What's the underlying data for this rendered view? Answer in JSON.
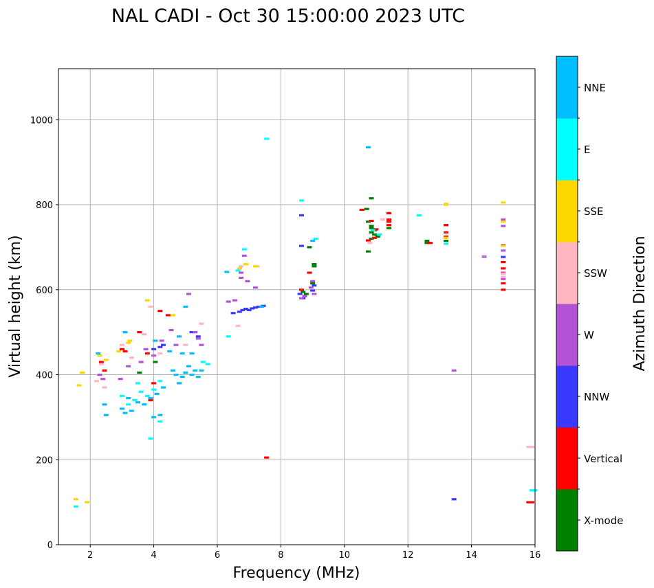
{
  "chart_data": {
    "type": "scatter",
    "title": "NAL CADI - Oct 30 15:00:00 2023 UTC",
    "xlabel": "Frequency (MHz)",
    "ylabel": "Virtual height (km)",
    "xlim": [
      1,
      16
    ],
    "ylim": [
      0,
      1120
    ],
    "xticks": [
      2,
      4,
      6,
      8,
      10,
      12,
      14,
      16
    ],
    "yticks": [
      0,
      200,
      400,
      600,
      800,
      1000
    ],
    "grid": true,
    "colorbar": {
      "label": "Azimuth Direction",
      "categories": [
        "X-mode",
        "Vertical",
        "NNW",
        "W",
        "SSW",
        "SSE",
        "E",
        "NNE"
      ],
      "colors": [
        "#008000",
        "#ff0000",
        "#3a3aff",
        "#b452d6",
        "#ffb6c1",
        "#ffd700",
        "#00ffff",
        "#00bfff"
      ]
    },
    "series": [
      {
        "name": "X-mode",
        "points": [
          [
            8.9,
            700
          ],
          [
            9.05,
            660
          ],
          [
            9.05,
            655
          ],
          [
            10.7,
            790
          ],
          [
            10.85,
            815
          ],
          [
            10.85,
            750
          ],
          [
            10.85,
            745
          ],
          [
            10.85,
            735
          ],
          [
            10.95,
            740
          ],
          [
            10.75,
            690
          ],
          [
            10.75,
            760
          ],
          [
            10.85,
            720
          ],
          [
            11.4,
            745
          ],
          [
            12.6,
            715
          ],
          [
            12.6,
            710
          ],
          [
            13.2,
            715
          ],
          [
            8.7,
            595
          ],
          [
            8.8,
            590
          ],
          [
            9.0,
            615
          ],
          [
            3.55,
            405
          ],
          [
            4.05,
            430
          ],
          [
            10.95,
            730
          ],
          [
            11.05,
            725
          ]
        ]
      },
      {
        "name": "Vertical",
        "points": [
          [
            7.55,
            205
          ],
          [
            10.55,
            788
          ],
          [
            10.85,
            762
          ],
          [
            10.95,
            722
          ],
          [
            10.75,
            716
          ],
          [
            11.0,
            742
          ],
          [
            11.4,
            780
          ],
          [
            11.4,
            765
          ],
          [
            11.4,
            760
          ],
          [
            11.4,
            752
          ],
          [
            12.7,
            710
          ],
          [
            13.2,
            752
          ],
          [
            13.2,
            735
          ],
          [
            13.2,
            725
          ],
          [
            15.0,
            665
          ],
          [
            15.0,
            650
          ],
          [
            15.0,
            615
          ],
          [
            15.0,
            600
          ],
          [
            15.8,
            100
          ],
          [
            15.9,
            100
          ],
          [
            8.65,
            600
          ],
          [
            8.9,
            640
          ],
          [
            3.0,
            460
          ],
          [
            3.1,
            455
          ],
          [
            2.35,
            430
          ],
          [
            3.55,
            500
          ],
          [
            4.2,
            550
          ],
          [
            2.45,
            410
          ],
          [
            3.9,
            340
          ],
          [
            4.0,
            380
          ],
          [
            3.8,
            450
          ],
          [
            4.45,
            540
          ]
        ]
      },
      {
        "name": "NNW",
        "points": [
          [
            6.5,
            545
          ],
          [
            6.7,
            548
          ],
          [
            6.8,
            552
          ],
          [
            6.9,
            555
          ],
          [
            7.0,
            552
          ],
          [
            7.1,
            556
          ],
          [
            7.2,
            558
          ],
          [
            7.3,
            560
          ],
          [
            7.45,
            562
          ],
          [
            8.65,
            775
          ],
          [
            8.65,
            703
          ],
          [
            8.7,
            580
          ],
          [
            9.0,
            598
          ],
          [
            9.05,
            610
          ],
          [
            13.45,
            107
          ],
          [
            15.0,
            677
          ],
          [
            4.3,
            470
          ],
          [
            4.2,
            465
          ],
          [
            5.2,
            500
          ],
          [
            5.4,
            490
          ],
          [
            8.6,
            590
          ],
          [
            4.0,
            460
          ]
        ]
      },
      {
        "name": "W",
        "points": [
          [
            6.35,
            572
          ],
          [
            6.55,
            575
          ],
          [
            6.75,
            640
          ],
          [
            6.75,
            628
          ],
          [
            6.85,
            680
          ],
          [
            6.95,
            620
          ],
          [
            7.2,
            605
          ],
          [
            8.65,
            580
          ],
          [
            8.75,
            585
          ],
          [
            8.95,
            605
          ],
          [
            9.05,
            590
          ],
          [
            9.0,
            620
          ],
          [
            13.45,
            410
          ],
          [
            14.4,
            678
          ],
          [
            15.0,
            765
          ],
          [
            15.0,
            750
          ],
          [
            15.0,
            705
          ],
          [
            15.0,
            692
          ],
          [
            15.0,
            640
          ],
          [
            15.0,
            625
          ],
          [
            2.3,
            400
          ],
          [
            2.4,
            390
          ],
          [
            2.95,
            390
          ],
          [
            3.2,
            420
          ],
          [
            3.6,
            430
          ],
          [
            3.75,
            460
          ],
          [
            4.0,
            445
          ],
          [
            4.25,
            480
          ],
          [
            4.55,
            505
          ],
          [
            4.7,
            470
          ],
          [
            5.1,
            590
          ],
          [
            5.3,
            500
          ],
          [
            5.4,
            485
          ],
          [
            5.5,
            470
          ]
        ]
      },
      {
        "name": "SSW",
        "points": [
          [
            6.65,
            515
          ],
          [
            6.75,
            655
          ],
          [
            7.25,
            655
          ],
          [
            10.8,
            710
          ],
          [
            11.2,
            765
          ],
          [
            15.0,
            637
          ],
          [
            15.0,
            630
          ],
          [
            15.8,
            230
          ],
          [
            15.9,
            230
          ],
          [
            2.2,
            385
          ],
          [
            2.45,
            370
          ],
          [
            2.35,
            425
          ],
          [
            3.0,
            470
          ],
          [
            3.3,
            440
          ],
          [
            3.7,
            495
          ],
          [
            3.9,
            560
          ],
          [
            4.2,
            450
          ],
          [
            5.0,
            470
          ],
          [
            5.5,
            520
          ]
        ]
      },
      {
        "name": "SSE",
        "points": [
          [
            6.7,
            650
          ],
          [
            6.9,
            660
          ],
          [
            7.2,
            655
          ],
          [
            13.2,
            802
          ],
          [
            13.2,
            800
          ],
          [
            13.2,
            722
          ],
          [
            15.0,
            805
          ],
          [
            15.0,
            760
          ],
          [
            15.0,
            703
          ],
          [
            1.65,
            375
          ],
          [
            1.75,
            405
          ],
          [
            1.9,
            100
          ],
          [
            1.55,
            107
          ],
          [
            2.3,
            445
          ],
          [
            2.5,
            435
          ],
          [
            2.9,
            455
          ],
          [
            3.2,
            475
          ],
          [
            3.25,
            480
          ],
          [
            3.8,
            575
          ],
          [
            4.6,
            540
          ]
        ]
      },
      {
        "name": "E",
        "points": [
          [
            6.35,
            490
          ],
          [
            6.65,
            645
          ],
          [
            6.85,
            695
          ],
          [
            7.55,
            955
          ],
          [
            8.65,
            810
          ],
          [
            9.1,
            720
          ],
          [
            10.9,
            740
          ],
          [
            11.1,
            730
          ],
          [
            12.35,
            775
          ],
          [
            13.2,
            708
          ],
          [
            15.9,
            128
          ],
          [
            16.0,
            128
          ],
          [
            1.55,
            90
          ],
          [
            3.0,
            350
          ],
          [
            3.2,
            330
          ],
          [
            3.4,
            340
          ],
          [
            3.6,
            360
          ],
          [
            3.8,
            350
          ],
          [
            4.0,
            365
          ],
          [
            4.2,
            385
          ],
          [
            3.5,
            380
          ],
          [
            3.9,
            250
          ],
          [
            4.2,
            290
          ],
          [
            5.55,
            430
          ],
          [
            5.7,
            425
          ]
        ]
      },
      {
        "name": "NNE",
        "points": [
          [
            6.3,
            642
          ],
          [
            7.4,
            560
          ],
          [
            9.0,
            715
          ],
          [
            10.75,
            935
          ],
          [
            3.0,
            320
          ],
          [
            3.1,
            310
          ],
          [
            3.3,
            315
          ],
          [
            3.5,
            335
          ],
          [
            3.7,
            330
          ],
          [
            3.9,
            345
          ],
          [
            4.1,
            355
          ],
          [
            4.3,
            370
          ],
          [
            4.0,
            300
          ],
          [
            4.2,
            305
          ],
          [
            4.6,
            410
          ],
          [
            4.7,
            400
          ],
          [
            4.8,
            380
          ],
          [
            4.9,
            395
          ],
          [
            5.0,
            405
          ],
          [
            5.1,
            420
          ],
          [
            5.2,
            400
          ],
          [
            5.3,
            410
          ],
          [
            5.4,
            395
          ],
          [
            5.5,
            410
          ],
          [
            4.5,
            455
          ],
          [
            4.8,
            490
          ],
          [
            5.0,
            560
          ],
          [
            4.9,
            450
          ],
          [
            5.2,
            450
          ],
          [
            2.25,
            450
          ],
          [
            2.45,
            330
          ],
          [
            2.5,
            305
          ],
          [
            3.2,
            345
          ],
          [
            4.05,
            480
          ],
          [
            3.1,
            500
          ]
        ]
      }
    ]
  }
}
